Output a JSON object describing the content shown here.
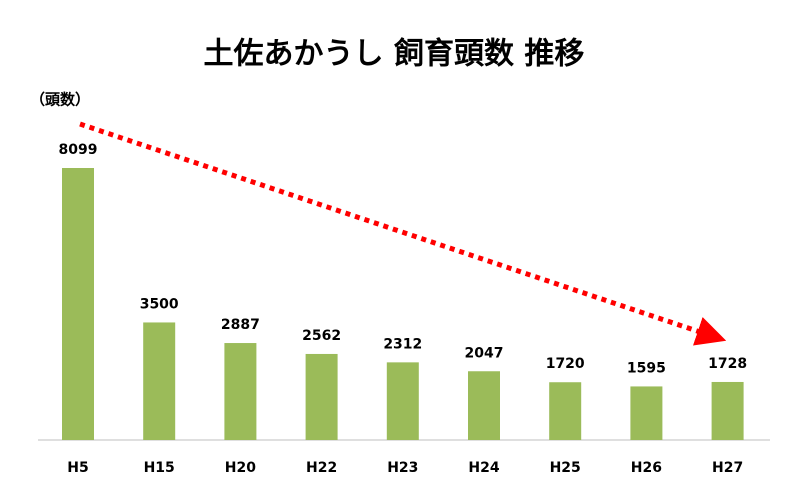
{
  "chart_data": {
    "type": "bar",
    "title": "土佐あかうし 飼育頭数 推移",
    "y_label": "（頭数）",
    "categories": [
      "H5",
      "H15",
      "H20",
      "H22",
      "H23",
      "H24",
      "H25",
      "H26",
      "H27"
    ],
    "values": [
      8099,
      3500,
      2887,
      2562,
      2312,
      2047,
      1720,
      1595,
      1728
    ],
    "color": "#9bbb59"
  }
}
